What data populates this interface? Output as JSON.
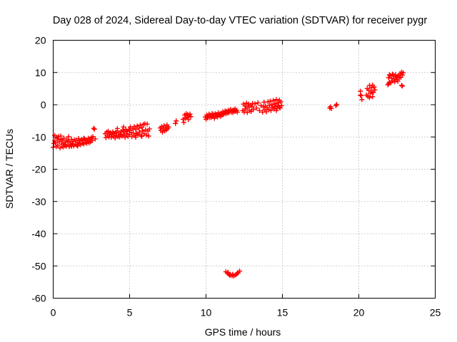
{
  "chart_data": {
    "type": "scatter",
    "title": "Day 028 of 2024, Sidereal Day-to-day VTEC variation (SDTVAR) for receiver pygr",
    "xlabel": "GPS time / hours",
    "ylabel": "SDTVAR / TECUs",
    "xlim": [
      0,
      25
    ],
    "ylim": [
      -60,
      20
    ],
    "xticks": [
      "0",
      "5",
      "10",
      "15",
      "20",
      "25"
    ],
    "yticks": [
      "-60",
      "-50",
      "-40",
      "-30",
      "-20",
      "-10",
      "0",
      "10",
      "20"
    ],
    "grid": true,
    "marker": "+",
    "color": "#ff0000",
    "series": [
      {
        "name": "SDTVAR",
        "points": [
          [
            0.0,
            -13.2
          ],
          [
            0.05,
            -12.0
          ],
          [
            0.1,
            -9.5
          ],
          [
            0.15,
            -11.8
          ],
          [
            0.2,
            -13.0
          ],
          [
            0.25,
            -10.2
          ],
          [
            0.3,
            -12.6
          ],
          [
            0.35,
            -9.8
          ],
          [
            0.4,
            -11.5
          ],
          [
            0.45,
            -13.4
          ],
          [
            0.5,
            -10.8
          ],
          [
            0.55,
            -12.2
          ],
          [
            0.6,
            -11.0
          ],
          [
            0.65,
            -13.1
          ],
          [
            0.7,
            -10.4
          ],
          [
            0.75,
            -12.7
          ],
          [
            0.8,
            -11.6
          ],
          [
            0.85,
            -12.9
          ],
          [
            0.9,
            -10.9
          ],
          [
            0.95,
            -12.4
          ],
          [
            1.0,
            -11.3
          ],
          [
            1.05,
            -13.0
          ],
          [
            1.1,
            -11.8
          ],
          [
            1.15,
            -12.5
          ],
          [
            1.2,
            -10.7
          ],
          [
            1.25,
            -12.1
          ],
          [
            1.3,
            -11.4
          ],
          [
            1.35,
            -12.8
          ],
          [
            1.4,
            -10.9
          ],
          [
            1.45,
            -12.3
          ],
          [
            1.5,
            -11.0
          ],
          [
            1.55,
            -12.6
          ],
          [
            1.6,
            -11.7
          ],
          [
            1.65,
            -10.5
          ],
          [
            1.7,
            -12.0
          ],
          [
            1.75,
            -11.2
          ],
          [
            1.8,
            -12.4
          ],
          [
            1.85,
            -10.8
          ],
          [
            1.9,
            -11.9
          ],
          [
            1.95,
            -11.1
          ],
          [
            2.0,
            -12.2
          ],
          [
            2.05,
            -10.6
          ],
          [
            2.1,
            -11.7
          ],
          [
            2.15,
            -10.9
          ],
          [
            2.2,
            -12.0
          ],
          [
            2.25,
            -11.3
          ],
          [
            2.3,
            -10.4
          ],
          [
            2.35,
            -11.8
          ],
          [
            2.4,
            -10.7
          ],
          [
            2.45,
            -11.5
          ],
          [
            2.5,
            -10.2
          ],
          [
            2.55,
            -11.1
          ],
          [
            2.6,
            -9.9
          ],
          [
            2.65,
            -7.3
          ],
          [
            2.7,
            -7.6
          ],
          [
            2.75,
            -10.6
          ],
          [
            0.1,
            -11.2
          ],
          [
            0.5,
            -9.7
          ],
          [
            1.0,
            -9.9
          ],
          [
            0.3,
            -10.6
          ],
          [
            0.7,
            -12.0
          ],
          [
            1.2,
            -12.9
          ],
          [
            1.6,
            -12.8
          ],
          [
            2.0,
            -10.4
          ],
          [
            3.4,
            -9.0
          ],
          [
            3.45,
            -10.2
          ],
          [
            3.5,
            -8.5
          ],
          [
            3.55,
            -9.6
          ],
          [
            3.6,
            -8.2
          ],
          [
            3.65,
            -10.0
          ],
          [
            3.7,
            -9.1
          ],
          [
            3.75,
            -8.7
          ],
          [
            3.8,
            -10.1
          ],
          [
            3.85,
            -9.3
          ],
          [
            3.9,
            -8.4
          ],
          [
            3.95,
            -9.8
          ],
          [
            4.0,
            -8.9
          ],
          [
            4.05,
            -10.3
          ],
          [
            4.1,
            -8.6
          ],
          [
            4.15,
            -9.5
          ],
          [
            4.2,
            -8.1
          ],
          [
            4.25,
            -9.9
          ],
          [
            4.3,
            -8.8
          ],
          [
            4.35,
            -10.0
          ],
          [
            4.4,
            -9.2
          ],
          [
            4.45,
            -8.3
          ],
          [
            4.5,
            -9.7
          ],
          [
            4.55,
            -7.9
          ],
          [
            4.6,
            -9.4
          ],
          [
            4.65,
            -8.5
          ],
          [
            4.7,
            -10.1
          ],
          [
            4.75,
            -7.6
          ],
          [
            4.8,
            -9.0
          ],
          [
            4.85,
            -8.2
          ],
          [
            4.9,
            -9.8
          ],
          [
            4.95,
            -7.8
          ],
          [
            5.0,
            -9.3
          ],
          [
            5.05,
            -6.9
          ],
          [
            5.1,
            -8.6
          ],
          [
            5.15,
            -9.9
          ],
          [
            5.2,
            -7.4
          ],
          [
            5.25,
            -8.8
          ],
          [
            5.3,
            -6.8
          ],
          [
            5.35,
            -9.5
          ],
          [
            5.4,
            -7.7
          ],
          [
            5.45,
            -8.9
          ],
          [
            5.5,
            -6.6
          ],
          [
            5.55,
            -9.2
          ],
          [
            5.6,
            -7.3
          ],
          [
            5.65,
            -8.5
          ],
          [
            5.7,
            -6.3
          ],
          [
            5.75,
            -9.6
          ],
          [
            5.8,
            -7.0
          ],
          [
            5.85,
            -8.1
          ],
          [
            5.9,
            -6.1
          ],
          [
            5.95,
            -9.0
          ],
          [
            6.0,
            -5.9
          ],
          [
            6.05,
            -7.8
          ],
          [
            6.1,
            -9.4
          ],
          [
            6.15,
            -6.0
          ],
          [
            6.2,
            -8.2
          ],
          [
            6.25,
            -9.7
          ],
          [
            6.3,
            -7.5
          ],
          [
            4.2,
            -7.4
          ],
          [
            4.6,
            -6.9
          ],
          [
            5.0,
            -7.9
          ],
          [
            5.4,
            -10.1
          ],
          [
            5.8,
            -9.8
          ],
          [
            7.0,
            -7.2
          ],
          [
            7.05,
            -8.0
          ],
          [
            7.1,
            -6.8
          ],
          [
            7.15,
            -8.5
          ],
          [
            7.2,
            -7.5
          ],
          [
            7.25,
            -6.5
          ],
          [
            7.3,
            -8.1
          ],
          [
            7.35,
            -7.0
          ],
          [
            7.4,
            -7.8
          ],
          [
            7.45,
            -6.3
          ],
          [
            7.5,
            -7.4
          ],
          [
            7.55,
            -6.9
          ],
          [
            8.0,
            -5.8
          ],
          [
            8.05,
            -5.0
          ],
          [
            8.5,
            -4.5
          ],
          [
            8.55,
            -5.5
          ],
          [
            8.6,
            -3.2
          ],
          [
            8.65,
            -4.2
          ],
          [
            8.7,
            -2.8
          ],
          [
            8.75,
            -3.9
          ],
          [
            8.8,
            -3.0
          ],
          [
            8.85,
            -4.6
          ],
          [
            8.9,
            -3.4
          ],
          [
            8.95,
            -2.9
          ],
          [
            9.0,
            -3.7
          ],
          [
            9.95,
            -3.8
          ],
          [
            10.0,
            -4.5
          ],
          [
            10.05,
            -3.2
          ],
          [
            10.1,
            -4.1
          ],
          [
            10.15,
            -3.5
          ],
          [
            10.2,
            -2.9
          ],
          [
            10.25,
            -4.0
          ],
          [
            10.3,
            -3.3
          ],
          [
            10.35,
            -3.9
          ],
          [
            10.4,
            -2.7
          ],
          [
            10.45,
            -3.6
          ],
          [
            10.5,
            -3.1
          ],
          [
            10.55,
            -4.2
          ],
          [
            10.6,
            -2.8
          ],
          [
            10.65,
            -3.5
          ],
          [
            10.7,
            -3.0
          ],
          [
            10.75,
            -3.8
          ],
          [
            10.8,
            -2.5
          ],
          [
            10.85,
            -3.3
          ],
          [
            10.9,
            -2.9
          ],
          [
            10.95,
            -3.6
          ],
          [
            11.0,
            -2.6
          ],
          [
            11.05,
            -3.2
          ],
          [
            11.1,
            -2.2
          ],
          [
            11.15,
            -3.0
          ],
          [
            11.2,
            -2.5
          ],
          [
            11.25,
            -1.9
          ],
          [
            11.3,
            -2.8
          ],
          [
            11.35,
            -2.1
          ],
          [
            11.4,
            -2.6
          ],
          [
            11.45,
            -1.7
          ],
          [
            11.5,
            -2.4
          ],
          [
            11.55,
            -2.0
          ],
          [
            11.6,
            -1.5
          ],
          [
            11.65,
            -2.3
          ],
          [
            11.7,
            -1.8
          ],
          [
            11.75,
            -2.4
          ],
          [
            11.8,
            -1.6
          ],
          [
            11.85,
            -2.1
          ],
          [
            11.9,
            -1.3
          ],
          [
            11.95,
            -2.0
          ],
          [
            12.0,
            -1.7
          ],
          [
            12.05,
            -2.3
          ],
          [
            11.3,
            -51.8
          ],
          [
            11.4,
            -52.2
          ],
          [
            11.5,
            -52.6
          ],
          [
            11.6,
            -52.8
          ],
          [
            11.7,
            -53.0
          ],
          [
            11.8,
            -53.1
          ],
          [
            11.9,
            -52.9
          ],
          [
            12.0,
            -52.6
          ],
          [
            12.1,
            -52.1
          ],
          [
            12.2,
            -51.6
          ],
          [
            11.45,
            -52.0
          ],
          [
            11.75,
            -52.6
          ],
          [
            12.05,
            -52.2
          ],
          [
            11.55,
            -52.9
          ],
          [
            12.4,
            -1.8
          ],
          [
            12.45,
            0.2
          ],
          [
            12.5,
            -2.3
          ],
          [
            12.55,
            -0.4
          ],
          [
            12.6,
            -1.3
          ],
          [
            12.65,
            0.5
          ],
          [
            12.7,
            -2.4
          ],
          [
            12.75,
            -0.8
          ],
          [
            12.8,
            0.2
          ],
          [
            12.85,
            -1.8
          ],
          [
            12.9,
            -0.2
          ],
          [
            12.95,
            -2.1
          ],
          [
            13.0,
            -0.6
          ],
          [
            13.05,
            0.4
          ],
          [
            13.1,
            -1.5
          ],
          [
            13.2,
            0.3
          ],
          [
            13.3,
            -1.0
          ],
          [
            13.4,
            0.6
          ],
          [
            13.5,
            -1.8
          ],
          [
            13.6,
            -0.3
          ],
          [
            13.7,
            -2.3
          ],
          [
            13.75,
            -0.7
          ],
          [
            13.8,
            0.8
          ],
          [
            13.85,
            -1.6
          ],
          [
            13.9,
            -0.4
          ],
          [
            13.95,
            -2.2
          ],
          [
            14.0,
            -1.0
          ],
          [
            14.05,
            0.9
          ],
          [
            14.1,
            -1.5
          ],
          [
            14.15,
            -0.2
          ],
          [
            14.2,
            1.1
          ],
          [
            14.25,
            -1.8
          ],
          [
            14.3,
            0.0
          ],
          [
            14.35,
            -0.8
          ],
          [
            14.4,
            1.3
          ],
          [
            14.45,
            -1.3
          ],
          [
            14.5,
            0.3
          ],
          [
            14.55,
            -0.5
          ],
          [
            14.6,
            1.6
          ],
          [
            14.65,
            -1.1
          ],
          [
            14.7,
            0.6
          ],
          [
            14.75,
            -0.2
          ],
          [
            14.8,
            1.4
          ],
          [
            14.85,
            -1.0
          ],
          [
            14.9,
            0.9
          ],
          [
            14.95,
            -0.3
          ],
          [
            14.8,
            -0.8
          ],
          [
            14.6,
            -1.8
          ],
          [
            18.1,
            -1.0
          ],
          [
            18.15,
            -0.6
          ],
          [
            18.2,
            -1.2
          ],
          [
            18.5,
            -0.3
          ],
          [
            18.55,
            0.1
          ],
          [
            20.1,
            4.2
          ],
          [
            20.15,
            2.8
          ],
          [
            20.2,
            1.6
          ],
          [
            20.1,
            3.0
          ],
          [
            20.5,
            3.0
          ],
          [
            20.55,
            5.0
          ],
          [
            20.6,
            2.6
          ],
          [
            20.65,
            4.5
          ],
          [
            20.7,
            6.0
          ],
          [
            20.75,
            3.5
          ],
          [
            20.8,
            5.2
          ],
          [
            20.85,
            4.0
          ],
          [
            20.9,
            6.1
          ],
          [
            20.95,
            3.8
          ],
          [
            21.0,
            5.5
          ],
          [
            21.05,
            4.6
          ],
          [
            20.7,
            2.2
          ],
          [
            20.9,
            2.5
          ],
          [
            21.9,
            6.2
          ],
          [
            21.95,
            8.4
          ],
          [
            22.0,
            7.0
          ],
          [
            22.05,
            9.0
          ],
          [
            22.1,
            6.8
          ],
          [
            22.15,
            8.2
          ],
          [
            22.2,
            7.4
          ],
          [
            22.25,
            9.2
          ],
          [
            22.3,
            8.0
          ],
          [
            22.35,
            7.1
          ],
          [
            22.4,
            9.3
          ],
          [
            22.45,
            7.8
          ],
          [
            22.5,
            8.6
          ],
          [
            22.55,
            7.3
          ],
          [
            22.6,
            9.1
          ],
          [
            22.65,
            8.3
          ],
          [
            22.7,
            9.6
          ],
          [
            22.75,
            8.5
          ],
          [
            22.8,
            10.1
          ],
          [
            22.85,
            9.2
          ],
          [
            22.9,
            9.9
          ],
          [
            22.0,
            9.3
          ],
          [
            22.4,
            8.8
          ],
          [
            22.8,
            6.0
          ],
          [
            22.85,
            5.8
          ],
          [
            21.95,
            6.5
          ],
          [
            22.2,
            9.5
          ]
        ]
      }
    ]
  }
}
